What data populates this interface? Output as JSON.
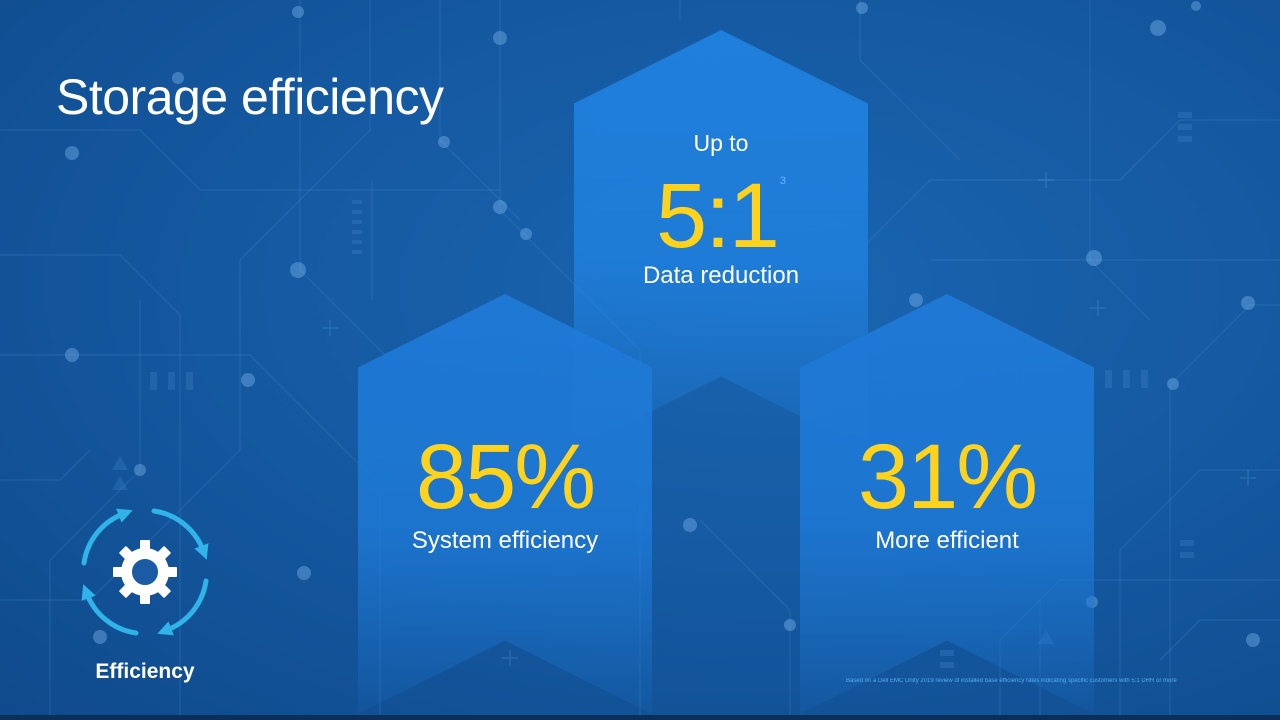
{
  "slide": {
    "title": "Storage efficiency",
    "stats": [
      {
        "prefix": "Up to",
        "value": "5:1",
        "sup": "3",
        "label": "Data reduction"
      },
      {
        "value": "85%",
        "label": "System efficiency"
      },
      {
        "value": "31%",
        "label": "More efficient"
      }
    ],
    "badge": {
      "label": "Efficiency",
      "icon": "gear-cycle-icon"
    },
    "footnote": "Based on a Dell EMC Unity 2019 review of installed base efficiency rates indicating specific customers with 5:1 DRR or more"
  },
  "colors": {
    "background": "#155aa2",
    "pillar": "#1e7ad7",
    "value": "#ffd31c",
    "icon": "#2fb3e8",
    "text": "#ffffff"
  }
}
